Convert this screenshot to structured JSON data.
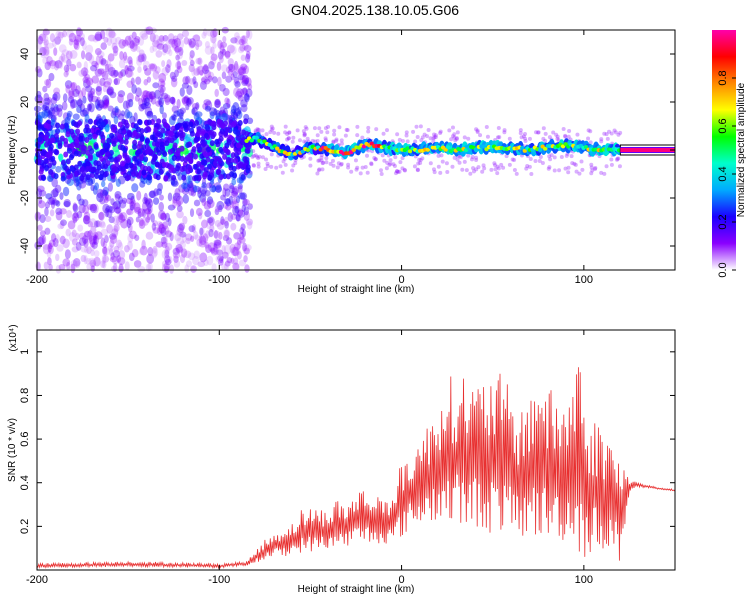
{
  "figure": {
    "title": "GN04.2025.138.10.05.G06"
  },
  "chart_data": [
    {
      "type": "heatmap",
      "xlabel": "Height of straight line (km)",
      "ylabel": "Frequency (Hz)",
      "xlim": [
        -200,
        150
      ],
      "ylim": [
        -50,
        50
      ],
      "x_ticks": [
        -200,
        -100,
        0,
        100
      ],
      "y_ticks": [
        -40,
        -20,
        0,
        20,
        40
      ],
      "colorbar": {
        "label": "Normalized spectral amplitude",
        "range": [
          0,
          1
        ],
        "ticks": [
          "0.0",
          "0.2",
          "0.4",
          "0.6",
          "0.8"
        ],
        "colormap": [
          "#ffffff",
          "#8a00ff",
          "#1a00ff",
          "#00aaff",
          "#00ffcc",
          "#00ff00",
          "#ffff00",
          "#ff8800",
          "#ff0000",
          "#ff00aa"
        ]
      },
      "ridge": {
        "x": [
          -85,
          -80,
          -70,
          -60,
          -50,
          -40,
          -30,
          -20,
          -15,
          -10,
          0,
          10,
          20,
          30,
          40,
          50,
          60,
          70,
          80,
          90,
          100,
          110,
          120,
          150
        ],
        "frequency": [
          4,
          5,
          1,
          -2,
          1,
          0,
          -1,
          2,
          2,
          1,
          0,
          0,
          1,
          0,
          1,
          1,
          1,
          0,
          1,
          2,
          1,
          0,
          0,
          0
        ]
      },
      "regions": [
        {
          "x_range": [
            -200,
            -83
          ],
          "character": "diffuse noise",
          "frequency_spread": [
            -50,
            50
          ]
        },
        {
          "x_range": [
            -83,
            120
          ],
          "character": "narrow band near 0 Hz"
        },
        {
          "x_range": [
            120,
            150
          ],
          "character": "constant line at 0 Hz"
        }
      ]
    },
    {
      "type": "line",
      "xlabel": "Height of straight line (km)",
      "ylabel": "SNR (10 * v/v)",
      "y_multiplier": "(x10⁴)",
      "xlim": [
        -200,
        150
      ],
      "ylim": [
        0,
        1.1
      ],
      "x_ticks": [
        -200,
        -100,
        0,
        100
      ],
      "y_ticks": [
        0.2,
        0.4,
        0.6,
        0.8,
        1.0
      ],
      "y_tick_labels": [
        "0.2",
        "0.4",
        "0.6",
        "0.8",
        "1"
      ],
      "series": [
        {
          "color": "#e83030",
          "x": [
            -200,
            -150,
            -100,
            -85,
            -80,
            -75,
            -70,
            -65,
            -60,
            -55,
            -50,
            -45,
            -40,
            -35,
            -30,
            -25,
            -20,
            -15,
            -10,
            -5,
            0,
            5,
            10,
            15,
            20,
            25,
            30,
            35,
            40,
            45,
            50,
            55,
            60,
            65,
            70,
            75,
            80,
            85,
            90,
            95,
            98,
            100,
            105,
            110,
            115,
            120,
            125,
            130,
            140,
            150
          ],
          "upper": [
            0.03,
            0.04,
            0.03,
            0.04,
            0.09,
            0.14,
            0.17,
            0.2,
            0.22,
            0.28,
            0.3,
            0.28,
            0.29,
            0.33,
            0.3,
            0.37,
            0.38,
            0.33,
            0.38,
            0.32,
            0.51,
            0.56,
            0.62,
            0.68,
            0.8,
            0.9,
            0.88,
            0.92,
            0.86,
            0.88,
            0.93,
            0.9,
            0.82,
            0.72,
            0.82,
            0.95,
            0.85,
            0.8,
            0.8,
            0.96,
            1.1,
            0.75,
            0.7,
            0.68,
            0.62,
            0.52,
            0.42,
            0.4,
            0.38,
            0.37
          ],
          "lower": [
            0.01,
            0.015,
            0.01,
            0.02,
            0.03,
            0.05,
            0.06,
            0.06,
            0.07,
            0.08,
            0.08,
            0.09,
            0.1,
            0.1,
            0.11,
            0.12,
            0.12,
            0.12,
            0.12,
            0.12,
            0.15,
            0.18,
            0.2,
            0.22,
            0.22,
            0.2,
            0.21,
            0.18,
            0.2,
            0.18,
            0.16,
            0.17,
            0.14,
            0.15,
            0.14,
            0.15,
            0.12,
            0.15,
            0.12,
            0.1,
            0.06,
            0.05,
            0.08,
            0.1,
            0.06,
            0.03,
            0.36,
            0.38,
            0.37,
            0.36
          ]
        }
      ]
    }
  ]
}
